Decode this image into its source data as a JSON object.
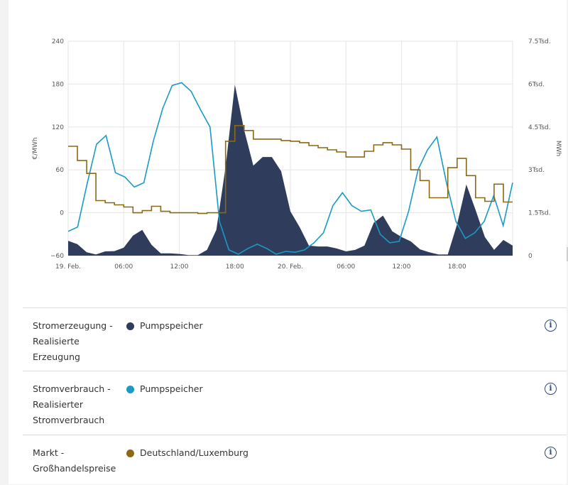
{
  "chart_data": {
    "type": "line",
    "y_left": {
      "label": "€/MWh",
      "min": -60,
      "max": 240,
      "ticks": [
        "240",
        "180",
        "120",
        "60",
        "0",
        "−60"
      ]
    },
    "y_right": {
      "label": "MWh",
      "min": 0,
      "max": 7500,
      "ticks": [
        "7.5Tsd.",
        "6Tsd.",
        "4.5Tsd.",
        "3Tsd.",
        "1.5Tsd.",
        "0"
      ]
    },
    "x_ticks": [
      "19. Feb.",
      "06:00",
      "12:00",
      "18:00",
      "20. Feb.",
      "06:00",
      "12:00",
      "18:00"
    ],
    "grid": true,
    "series": [
      {
        "name": "Pumpspeicher",
        "type": "area",
        "axis": "right",
        "color": "#2f3c5b",
        "values": [
          520,
          400,
          120,
          40,
          150,
          160,
          280,
          700,
          900,
          380,
          80,
          80,
          60,
          20,
          20,
          200,
          900,
          3100,
          5980,
          4400,
          3150,
          3450,
          3450,
          2950,
          1550,
          1000,
          350,
          320,
          320,
          250,
          150,
          200,
          350,
          1150,
          1400,
          850,
          650,
          500,
          220,
          120,
          40,
          40,
          1100,
          2490,
          1600,
          650,
          200,
          550,
          350
        ]
      },
      {
        "name": "Pumpspeicher",
        "type": "line",
        "axis": "right",
        "color": "#1a9ac4",
        "values": [
          850,
          1000,
          2500,
          3900,
          4200,
          2900,
          2750,
          2400,
          2550,
          4000,
          5150,
          5950,
          6050,
          5750,
          5100,
          4500,
          1200,
          200,
          50,
          250,
          400,
          250,
          50,
          150,
          120,
          200,
          450,
          800,
          1750,
          2200,
          1750,
          1550,
          1600,
          750,
          450,
          500,
          1550,
          3000,
          3700,
          4150,
          2550,
          1200,
          600,
          800,
          1200,
          2100,
          1050,
          2550
        ]
      },
      {
        "name": "Deutschland/Luxemburg",
        "type": "step",
        "axis": "left",
        "color": "#8b6914",
        "values": [
          93,
          73,
          55,
          17,
          14,
          11,
          8,
          0,
          3,
          9,
          2,
          0,
          0,
          0,
          -1,
          0,
          0,
          100,
          122,
          115,
          103,
          103,
          103,
          101,
          100,
          98,
          94,
          91,
          88,
          85,
          78,
          78,
          86,
          95,
          98,
          95,
          89,
          60,
          45,
          21,
          21,
          63,
          76,
          52,
          21,
          16,
          40,
          15
        ]
      }
    ]
  },
  "legend": [
    {
      "category": "Stromerzeugung - Realisierte Erzeugung",
      "series": "Pumpspeicher",
      "color": "#2f3c5b",
      "icon": "info-icon"
    },
    {
      "category": "Stromverbrauch - Realisierter Stromverbrauch",
      "series": "Pumpspeicher",
      "color": "#1a9ac4",
      "icon": "info-icon"
    },
    {
      "category": "Markt - Großhandelspreise",
      "series": "Deutschland/Luxemburg",
      "color": "#8b6914",
      "icon": "info-icon"
    }
  ]
}
